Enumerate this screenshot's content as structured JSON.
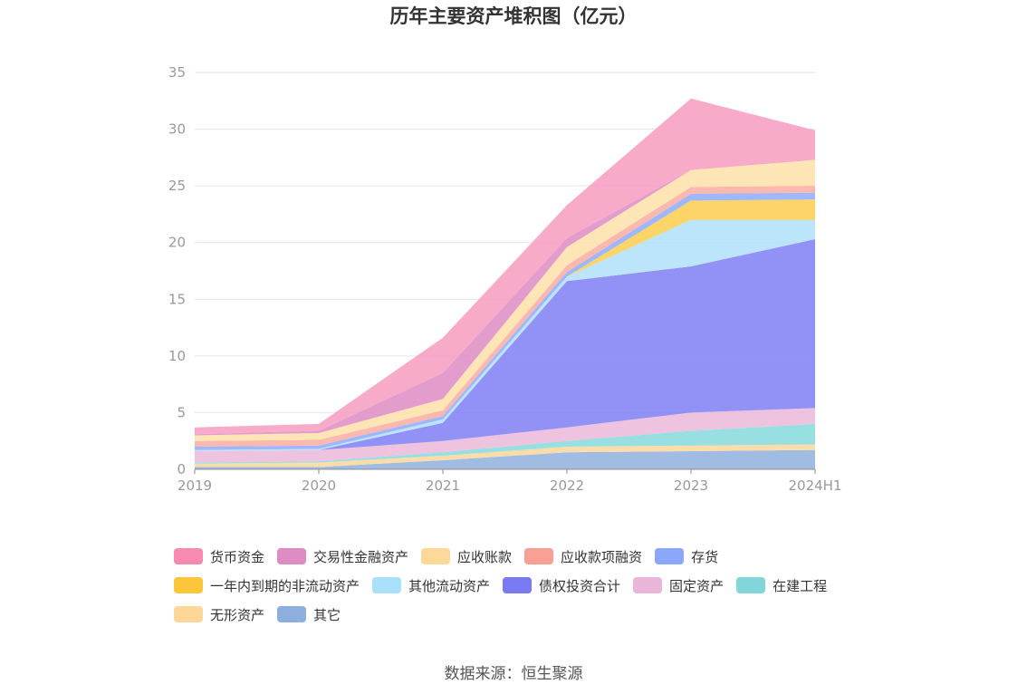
{
  "chart_data": {
    "type": "area",
    "title": "历年主要资产堆积图（亿元）",
    "categories": [
      "2019",
      "2020",
      "2021",
      "2022",
      "2023",
      "2024H1"
    ],
    "ylim": [
      0,
      35
    ],
    "yticks": [
      0,
      5,
      10,
      15,
      20,
      25,
      30,
      35
    ],
    "stacked": true,
    "grid": true,
    "legend_position": "bottom",
    "series": [
      {
        "name": "其它",
        "color": "#8fb0de",
        "values": [
          0.2,
          0.2,
          0.8,
          1.5,
          1.6,
          1.7
        ]
      },
      {
        "name": "无形资产",
        "color": "#fcd79a",
        "values": [
          0.3,
          0.4,
          0.4,
          0.5,
          0.5,
          0.5
        ]
      },
      {
        "name": "在建工程",
        "color": "#86d9dc",
        "values": [
          0.1,
          0.1,
          0.3,
          0.5,
          1.3,
          1.8
        ]
      },
      {
        "name": "固定资产",
        "color": "#ebb8d9",
        "values": [
          1.0,
          1.0,
          1.0,
          1.2,
          1.6,
          1.4
        ]
      },
      {
        "name": "债权投资合计",
        "color": "#7f7ff5",
        "values": [
          0.0,
          0.0,
          1.6,
          12.9,
          12.9,
          14.9
        ]
      },
      {
        "name": "其他流动资产",
        "color": "#b0e1fa",
        "values": [
          0.1,
          0.1,
          0.3,
          0.4,
          4.1,
          1.7
        ]
      },
      {
        "name": "一年内到期的非流动资产",
        "color": "#fccd4c",
        "values": [
          0.0,
          0.0,
          0.0,
          0.0,
          1.7,
          1.8
        ]
      },
      {
        "name": "存货",
        "color": "#8eaafc",
        "values": [
          0.3,
          0.3,
          0.3,
          0.4,
          0.6,
          0.6
        ]
      },
      {
        "name": "应收款项融资",
        "color": "#f9aba0",
        "values": [
          0.5,
          0.5,
          0.5,
          0.6,
          0.6,
          0.6
        ]
      },
      {
        "name": "应收账款",
        "color": "#fde0a8",
        "values": [
          0.5,
          0.6,
          1.0,
          1.6,
          1.5,
          2.3
        ]
      },
      {
        "name": "交易性金融资产",
        "color": "#de8cc4",
        "values": [
          0.1,
          0.2,
          2.3,
          0.8,
          0.0,
          0.0
        ]
      },
      {
        "name": "货币资金",
        "color": "#f79bbf",
        "values": [
          0.6,
          0.6,
          3.1,
          2.9,
          6.3,
          2.6
        ]
      }
    ]
  },
  "legend_rows": [
    [
      {
        "label": "货币资金",
        "color": "#f889b0"
      },
      {
        "label": "交易性金融资产",
        "color": "#de8cc4"
      },
      {
        "label": "应收账款",
        "color": "#fdd898"
      },
      {
        "label": "应收款项融资",
        "color": "#f9a095"
      },
      {
        "label": "存货",
        "color": "#8aa7fb"
      }
    ],
    [
      {
        "label": "一年内到期的非流动资产",
        "color": "#fbc63c"
      },
      {
        "label": "其他流动资产",
        "color": "#a9e0fa"
      },
      {
        "label": "债权投资合计",
        "color": "#7a7af4"
      },
      {
        "label": "固定资产",
        "color": "#e9b5d8"
      },
      {
        "label": "在建工程",
        "color": "#82d6da"
      }
    ],
    [
      {
        "label": "无形资产",
        "color": "#fdd698"
      },
      {
        "label": "其它",
        "color": "#8eaedd"
      }
    ]
  ],
  "source": "数据来源：恒生聚源"
}
